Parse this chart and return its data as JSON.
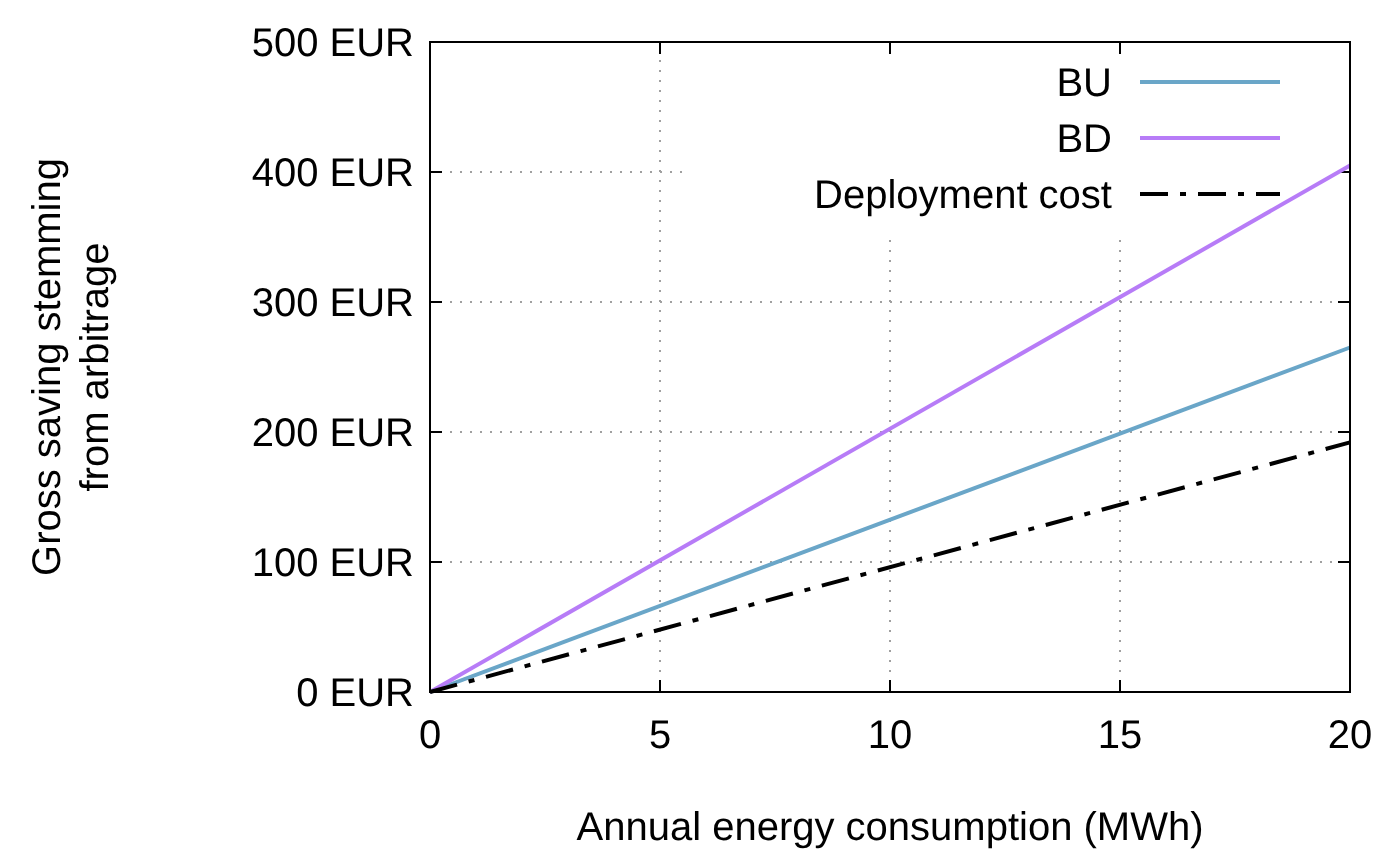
{
  "chart_data": {
    "type": "line",
    "xlabel": "Annual energy consumption (MWh)",
    "ylabel": "Gross saving stemming\nfrom arbitrage",
    "x": [
      0,
      20
    ],
    "series": [
      {
        "name": "BU",
        "color": "#6aa6c8",
        "values": [
          0,
          265
        ],
        "line_style": "solid"
      },
      {
        "name": "BD",
        "color": "#b77cf7",
        "values": [
          0,
          405
        ],
        "line_style": "solid"
      },
      {
        "name": "Deployment cost",
        "color": "#000000",
        "values": [
          0,
          192
        ],
        "line_style": "dashdot"
      }
    ],
    "xlim": [
      0,
      20
    ],
    "xticks": [
      0,
      5,
      10,
      15,
      20
    ],
    "ylim": [
      0,
      500
    ],
    "yticks": [
      {
        "value": 0,
        "label": "0 EUR"
      },
      {
        "value": 100,
        "label": "100 EUR"
      },
      {
        "value": 200,
        "label": "200 EUR"
      },
      {
        "value": 300,
        "label": "300 EUR"
      },
      {
        "value": 400,
        "label": "400 EUR"
      },
      {
        "value": 500,
        "label": "500 EUR"
      }
    ],
    "grid": true,
    "legend": "top right"
  }
}
